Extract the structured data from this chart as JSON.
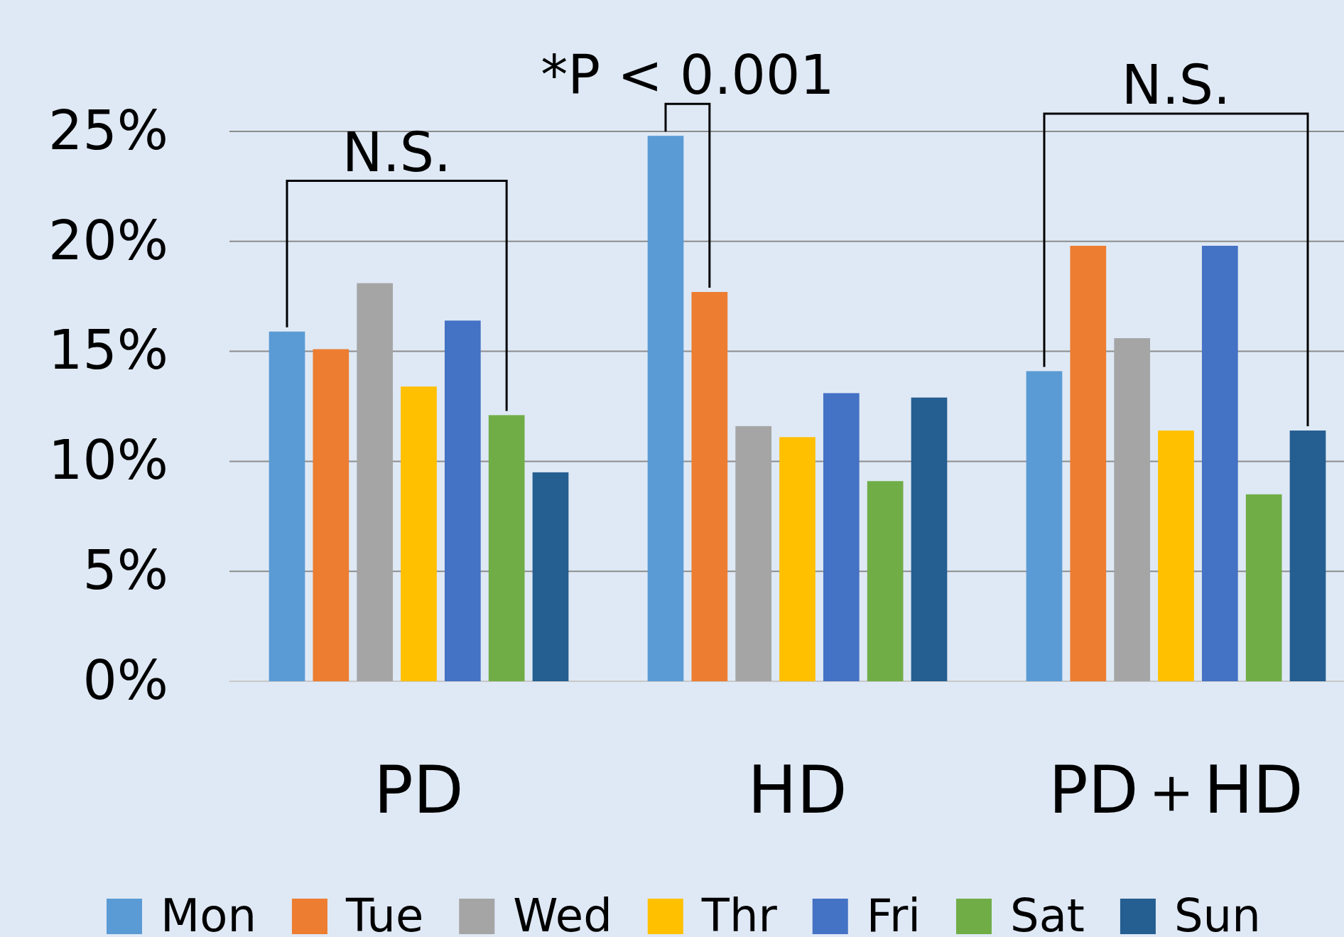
{
  "chart_data": {
    "type": "bar",
    "categories": [
      "PD",
      "HD",
      "PD＋HD"
    ],
    "series": [
      {
        "name": "Mon",
        "color": "#5b9bd5",
        "values": [
          15.9,
          24.8,
          14.1
        ]
      },
      {
        "name": "Tue",
        "color": "#ed7d31",
        "values": [
          15.1,
          17.7,
          19.8
        ]
      },
      {
        "name": "Wed",
        "color": "#a5a5a5",
        "values": [
          18.1,
          11.6,
          15.6
        ]
      },
      {
        "name": "Thr",
        "color": "#ffc000",
        "values": [
          13.4,
          11.1,
          11.4
        ]
      },
      {
        "name": "Fri",
        "color": "#4472c4",
        "values": [
          16.4,
          13.1,
          19.8
        ]
      },
      {
        "name": "Sat",
        "color": "#70ad47",
        "values": [
          12.1,
          9.1,
          8.5
        ]
      },
      {
        "name": "Sun",
        "color": "#255e91",
        "values": [
          9.5,
          12.9,
          11.4
        ]
      }
    ],
    "ylim": [
      0,
      25
    ],
    "yticks": [
      {
        "value": 0,
        "label": "0%"
      },
      {
        "value": 5,
        "label": "5%"
      },
      {
        "value": 10,
        "label": "10%"
      },
      {
        "value": 15,
        "label": "15%"
      },
      {
        "value": 20,
        "label": "20%"
      },
      {
        "value": 25,
        "label": "25%"
      }
    ],
    "grid": "y",
    "legend": "bottom",
    "annotations": [
      "N.S.",
      "*P < 0.001",
      "N.S."
    ]
  }
}
